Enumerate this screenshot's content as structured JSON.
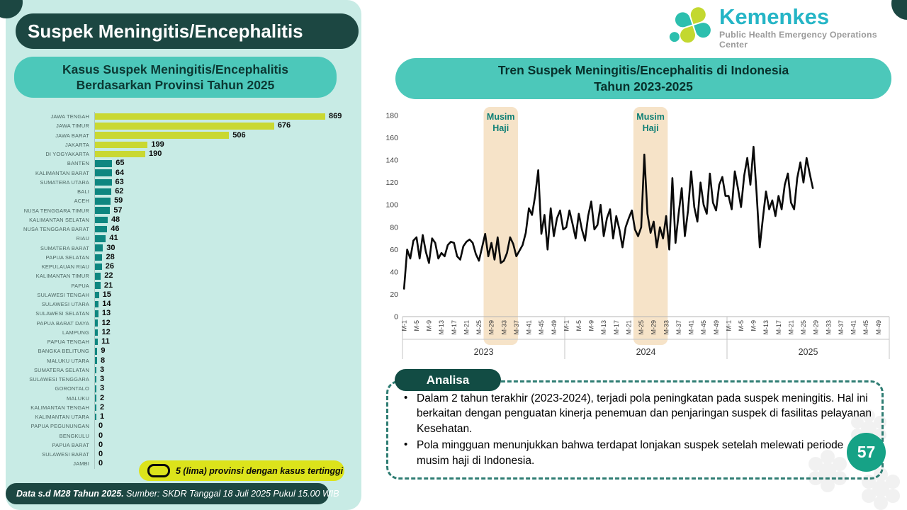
{
  "page": {
    "number": "57"
  },
  "left_panel": {
    "title": "Suspek Meningitis/Encephalitis",
    "subtitle_line1": "Kasus Suspek Meningitis/Encephalitis",
    "subtitle_line2": "Berdasarkan Provinsi Tahun 2025",
    "legend_label": "5 (lima) provinsi dengan kasus tertinggi",
    "footer_bold": "Data s.d M28 Tahun 2025.",
    "footer_rest": " Sumber: SKDR Tanggal 18 Juli 2025 Pukul 15.00 WIB"
  },
  "logo": {
    "name": "Kemenkes",
    "subtitle": "Public Health Emergency Operations Center",
    "teal": "#2cbfae",
    "lime": "#c3d830"
  },
  "right_panel": {
    "chart_title_line1": "Tren Suspek Meningitis/Encephalitis di Indonesia",
    "chart_title_line2": "Tahun 2023-2025",
    "analisa_title": "Analisa",
    "analysis_bullets": [
      "Dalam 2 tahun terakhir (2023-2024), terjadi pola peningkatan pada suspek meningitis. Hal ini berkaitan dengan penguatan kinerja penemuan dan penjaringan suspek di fasilitas pelayanan Kesehatan.",
      "Pola mingguan menunjukkan bahwa terdapat lonjakan suspek setelah melewati periode musim haji di Indonesia."
    ]
  },
  "chart_data": [
    {
      "type": "bar",
      "orientation": "horizontal",
      "title": "Kasus Suspek Meningitis/Encephalitis Berdasarkan Provinsi Tahun 2025",
      "categories": [
        "JAWA TENGAH",
        "JAWA TIMUR",
        "JAWA BARAT",
        "JAKARTA",
        "DI YOGYAKARTA",
        "BANTEN",
        "KALIMANTAN BARAT",
        "SUMATERA UTARA",
        "BALI",
        "ACEH",
        "NUSA TENGGARA TIMUR",
        "KALIMANTAN SELATAN",
        "NUSA TENGGARA BARAT",
        "RIAU",
        "SUMATERA BARAT",
        "PAPUA SELATAN",
        "KEPULAUAN RIAU",
        "KALIMANTAN TIMUR",
        "PAPUA",
        "SULAWESI TENGAH",
        "SULAWESI UTARA",
        "SULAWESI SELATAN",
        "PAPUA BARAT DAYA",
        "LAMPUNG",
        "PAPUA TENGAH",
        "BANGKA BELITUNG",
        "MALUKU UTARA",
        "SUMATERA SELATAN",
        "SULAWESI TENGGARA",
        "GORONTALO",
        "MALUKU",
        "KALIMANTAN TENGAH",
        "KALIMANTAN UTARA",
        "PAPUA PEGUNUNGAN",
        "BENGKULU",
        "PAPUA BARAT",
        "SULAWESI BARAT",
        "JAMBI"
      ],
      "values": [
        869,
        676,
        506,
        199,
        190,
        65,
        64,
        63,
        62,
        59,
        57,
        48,
        46,
        41,
        30,
        28,
        26,
        22,
        21,
        15,
        14,
        13,
        12,
        12,
        11,
        9,
        8,
        3,
        3,
        3,
        2,
        2,
        1,
        0,
        0,
        0,
        0,
        0
      ],
      "highlight_top_n": 5,
      "highlight_color": "#c9d832",
      "bar_color": "#0e8680",
      "xlim": [
        0,
        869
      ]
    },
    {
      "type": "line",
      "title": "Tren Suspek Meningitis/Encephalitis di Indonesia Tahun 2023-2025",
      "ylim": [
        0,
        180
      ],
      "ytick_step": 20,
      "yticks": [
        0,
        20,
        40,
        60,
        80,
        100,
        120,
        140,
        160,
        180
      ],
      "xtick_weeks": [
        1,
        5,
        9,
        13,
        17,
        21,
        25,
        29,
        33,
        37,
        41,
        45,
        49
      ],
      "xtick_prefix": "M-",
      "line_color": "#0a0a0a",
      "grid": false,
      "years": [
        "2023",
        "2024",
        "2025"
      ],
      "series": [
        {
          "name": "2023",
          "values": [
            25,
            60,
            52,
            68,
            71,
            52,
            73,
            58,
            48,
            70,
            66,
            52,
            57,
            54,
            64,
            67,
            66,
            54,
            51,
            63,
            67,
            69,
            66,
            56,
            50,
            62,
            74,
            54,
            66,
            51,
            71,
            48,
            50,
            57,
            71,
            65,
            54,
            59,
            64,
            75,
            97,
            91,
            108,
            131,
            74,
            91,
            60,
            97,
            72,
            88,
            95,
            78
          ]
        },
        {
          "name": "2024",
          "values": [
            80,
            95,
            83,
            70,
            92,
            78,
            68,
            90,
            103,
            78,
            82,
            100,
            72,
            88,
            96,
            70,
            90,
            78,
            62,
            80,
            88,
            95,
            78,
            72,
            80,
            145,
            92,
            75,
            85,
            62,
            80,
            70,
            90,
            60,
            124,
            66,
            92,
            115,
            72,
            95,
            130,
            98,
            85,
            120,
            100,
            92,
            128,
            102,
            95,
            118,
            125,
            108
          ]
        },
        {
          "name": "2025",
          "values": [
            108,
            96,
            130,
            115,
            98,
            126,
            142,
            118,
            152,
            110,
            62,
            88,
            112,
            96,
            104,
            90,
            108,
            96,
            118,
            128,
            102,
            96,
            124,
            138,
            120,
            142,
            128,
            115
          ]
        }
      ],
      "annotations": [
        {
          "label": "Musim Haji",
          "year": "2023",
          "from_week": 27,
          "to_week": 37,
          "band_color": "#f6e3c8",
          "label_color": "#0e7f75"
        },
        {
          "label": "Musim Haji",
          "year": "2024",
          "from_week": 23,
          "to_week": 33,
          "band_color": "#f6e3c8",
          "label_color": "#0e7f75"
        }
      ]
    }
  ]
}
